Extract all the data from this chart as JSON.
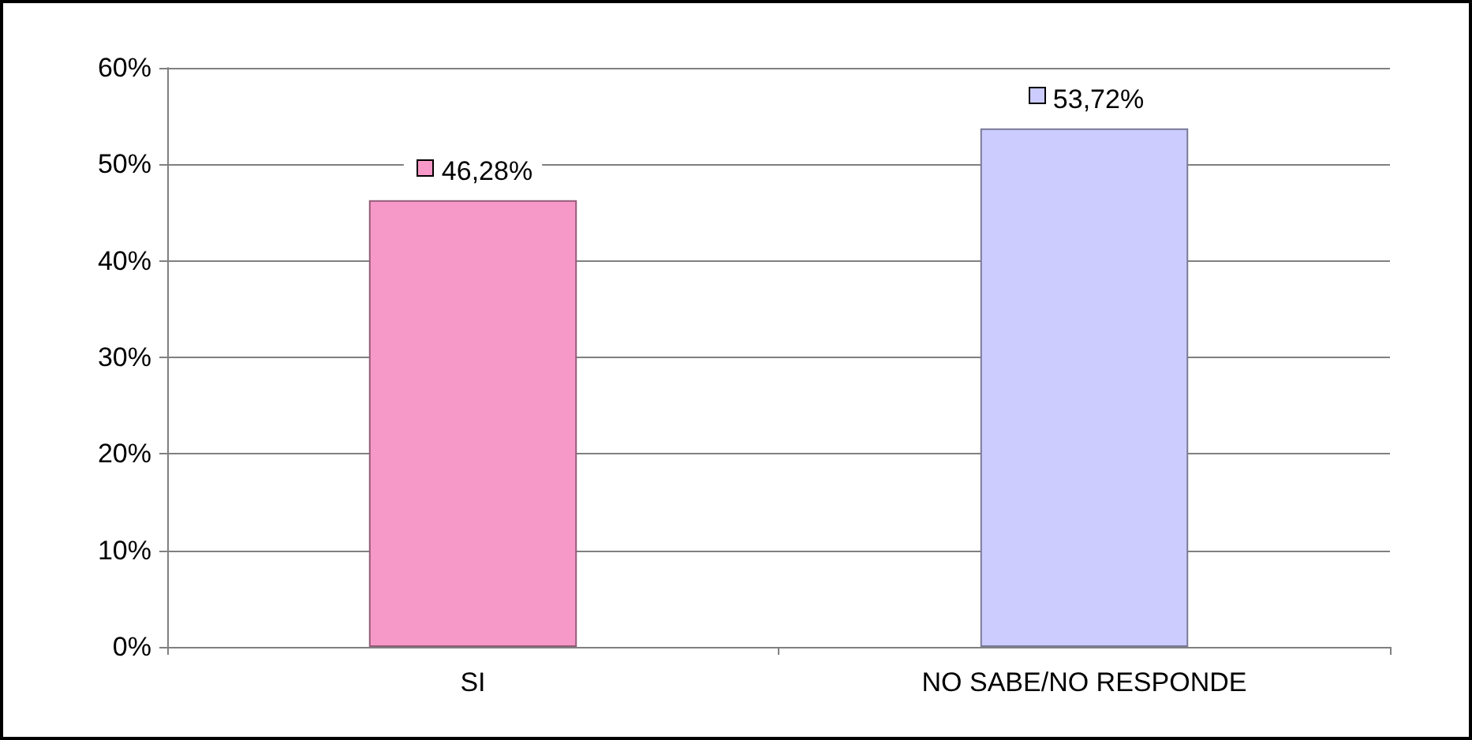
{
  "chart_data": {
    "type": "bar",
    "categories": [
      "SI",
      "NO SABE/NO RESPONDE"
    ],
    "values": [
      46.28,
      53.72
    ],
    "colors": [
      "#f799c8",
      "#ccccff"
    ],
    "value_labels": [
      "46,28%",
      "53,72%"
    ],
    "ylim": [
      0,
      60
    ],
    "yticks": [
      {
        "value": 0,
        "label": "0%"
      },
      {
        "value": 10,
        "label": "10%"
      },
      {
        "value": 20,
        "label": "20%"
      },
      {
        "value": 30,
        "label": "30%"
      },
      {
        "value": 40,
        "label": "40%"
      },
      {
        "value": 50,
        "label": "50%"
      },
      {
        "value": 60,
        "label": "60%"
      }
    ],
    "grid": "y"
  }
}
